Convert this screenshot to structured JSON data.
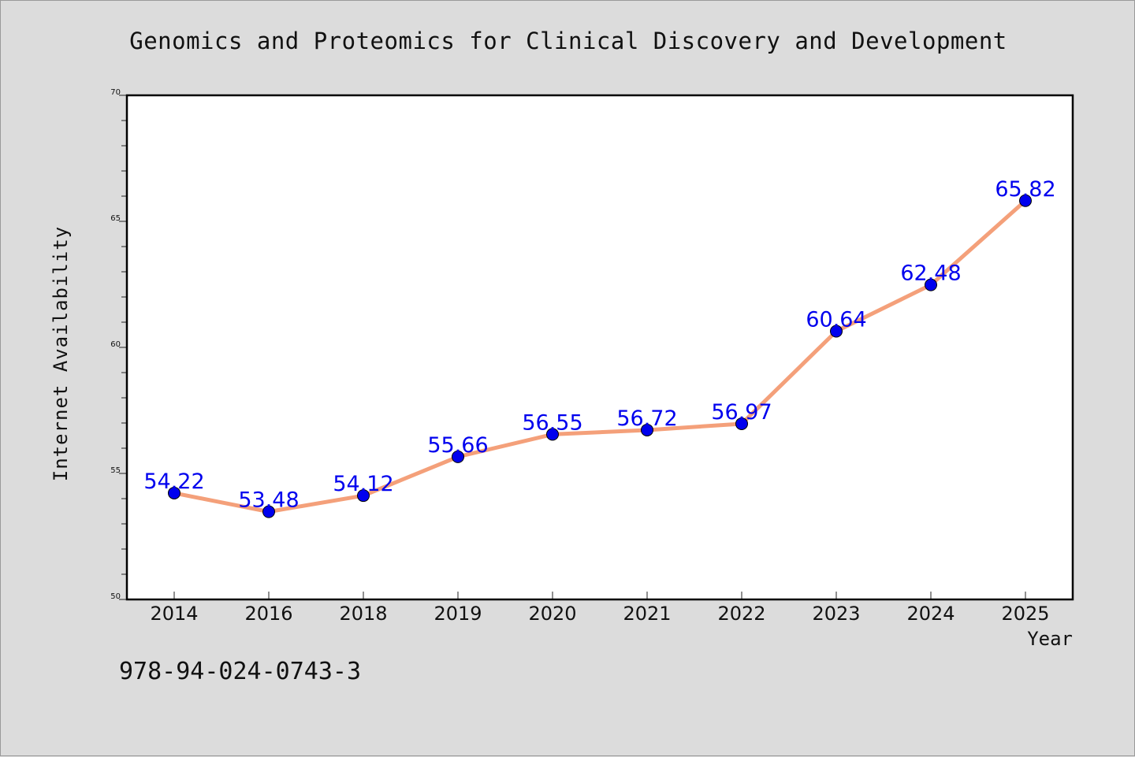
{
  "chart_data": {
    "type": "line",
    "title": "Genomics and Proteomics for Clinical Discovery and Development",
    "xlabel": "Year",
    "ylabel": "Internet Availability",
    "categories": [
      "2014",
      "2016",
      "2018",
      "2019",
      "2020",
      "2021",
      "2022",
      "2023",
      "2024",
      "2025"
    ],
    "series": [
      {
        "values": [
          54.22,
          53.48,
          54.12,
          55.66,
          56.55,
          56.72,
          56.97,
          60.64,
          62.48,
          65.82
        ],
        "labels": [
          "54.22",
          "53.48",
          "54.12",
          "55.66",
          "56.55",
          "56.72",
          "56.97",
          "60.64",
          "62.48",
          "65.82"
        ]
      }
    ],
    "ylim": [
      50,
      70
    ],
    "yticks": [
      "50",
      "55",
      "60",
      "65",
      "70"
    ],
    "grid": false,
    "colors": {
      "line": "#f4a07a",
      "marker": "#0000ee",
      "data_label": "#0000ee",
      "background": "#dcdcdc",
      "plot_background": "#ffffff"
    }
  },
  "footer": {
    "isbn": "978-94-024-0743-3"
  }
}
